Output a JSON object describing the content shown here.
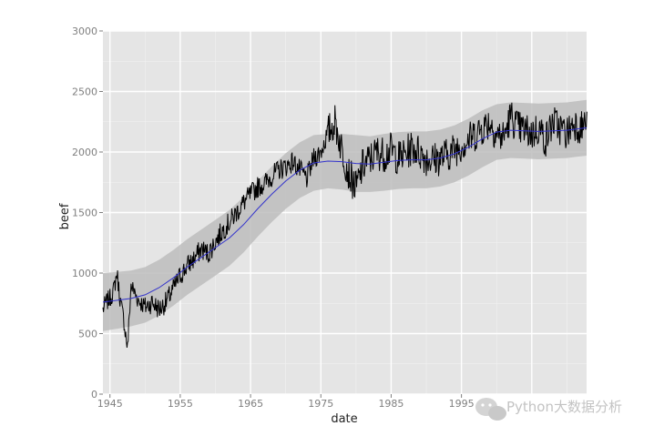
{
  "chart_data": {
    "type": "line",
    "title": "",
    "xlabel": "date",
    "ylabel": "beef",
    "xlim": [
      1944.0,
      2012.8
    ],
    "ylim": [
      0,
      3000
    ],
    "x_ticks": [
      1945,
      1955,
      1965,
      1975,
      1985,
      1995
    ],
    "x_tick_labels": [
      "1945",
      "1955",
      "1965",
      "1975",
      "1985",
      "1995"
    ],
    "y_ticks": [
      0,
      500,
      1000,
      1500,
      2000,
      2500,
      3000
    ],
    "y_tick_labels": [
      "0",
      "500",
      "1000",
      "1500",
      "2000",
      "2500",
      "3000"
    ],
    "grid": true,
    "legend": "none",
    "series": [
      {
        "kind": "raw",
        "x": [
          1944.0,
          1944.5,
          1945,
          1945.5,
          1946,
          1946.5,
          1947,
          1947.5,
          1948,
          1949,
          1950,
          1951,
          1952,
          1953,
          1954,
          1955,
          1956,
          1957,
          1958,
          1959,
          1960,
          1961,
          1962,
          1963,
          1964,
          1965,
          1966,
          1967,
          1968,
          1969,
          1970,
          1971,
          1972,
          1973,
          1974,
          1975,
          1976,
          1977,
          1978,
          1979,
          1980,
          1981,
          1982,
          1983,
          1984,
          1985,
          1986,
          1987,
          1988,
          1989,
          1990,
          1991,
          1992,
          1993,
          1994,
          1995,
          1996,
          1997,
          1998,
          1999,
          2000,
          2001,
          2002,
          2003,
          2004,
          2005,
          2006,
          2007,
          2008,
          2009,
          2010,
          2011,
          2012,
          2012.8
        ],
        "y": [
          700,
          760,
          790,
          850,
          1000,
          760,
          600,
          380,
          900,
          780,
          720,
          760,
          700,
          760,
          870,
          980,
          1060,
          1120,
          1200,
          1160,
          1260,
          1350,
          1420,
          1500,
          1580,
          1650,
          1710,
          1740,
          1800,
          1850,
          1880,
          1920,
          1850,
          1780,
          1950,
          2000,
          2160,
          2250,
          2020,
          1820,
          1700,
          1890,
          1940,
          2000,
          1980,
          2020,
          1950,
          1980,
          2040,
          2000,
          1950,
          1940,
          1950,
          1980,
          2020,
          2060,
          2100,
          2150,
          2200,
          2250,
          2150,
          2120,
          2300,
          2200,
          2180,
          2150,
          2200,
          2100,
          2250,
          2200,
          2150,
          2250,
          2200,
          2250
        ]
      },
      {
        "kind": "smooth",
        "x": [
          1944.0,
          1946,
          1948,
          1950,
          1952,
          1954,
          1956,
          1958,
          1960,
          1962,
          1964,
          1966,
          1968,
          1970,
          1972,
          1974,
          1976,
          1978,
          1980,
          1982,
          1984,
          1986,
          1988,
          1990,
          1992,
          1994,
          1996,
          1998,
          2000,
          2002,
          2004,
          2006,
          2008,
          2010,
          2012,
          2012.8
        ],
        "y": [
          760,
          775,
          790,
          820,
          880,
          960,
          1050,
          1130,
          1210,
          1290,
          1400,
          1530,
          1650,
          1760,
          1850,
          1910,
          1925,
          1920,
          1905,
          1900,
          1915,
          1930,
          1935,
          1935,
          1950,
          1985,
          2040,
          2110,
          2165,
          2180,
          2175,
          2170,
          2175,
          2180,
          2195,
          2200
        ],
        "lower": [
          520,
          540,
          560,
          590,
          650,
          730,
          820,
          900,
          980,
          1060,
          1170,
          1300,
          1420,
          1530,
          1620,
          1680,
          1700,
          1690,
          1670,
          1670,
          1680,
          1695,
          1700,
          1700,
          1715,
          1750,
          1805,
          1875,
          1935,
          1950,
          1945,
          1940,
          1945,
          1950,
          1965,
          1970
        ],
        "upper": [
          1000,
          1010,
          1020,
          1050,
          1110,
          1190,
          1280,
          1360,
          1440,
          1520,
          1630,
          1760,
          1880,
          1990,
          2080,
          2140,
          2150,
          2150,
          2140,
          2130,
          2150,
          2165,
          2170,
          2170,
          2185,
          2220,
          2275,
          2345,
          2395,
          2410,
          2405,
          2400,
          2405,
          2410,
          2425,
          2430
        ],
        "color": "#3333cc",
        "band_color": "#bdbdbd"
      }
    ],
    "colors": {
      "panel": "#e5e5e5",
      "grid": "#ffffff",
      "raw_line": "#000000"
    }
  },
  "watermark": {
    "text": "Python大数据分析",
    "icon": "wechat-icon"
  }
}
